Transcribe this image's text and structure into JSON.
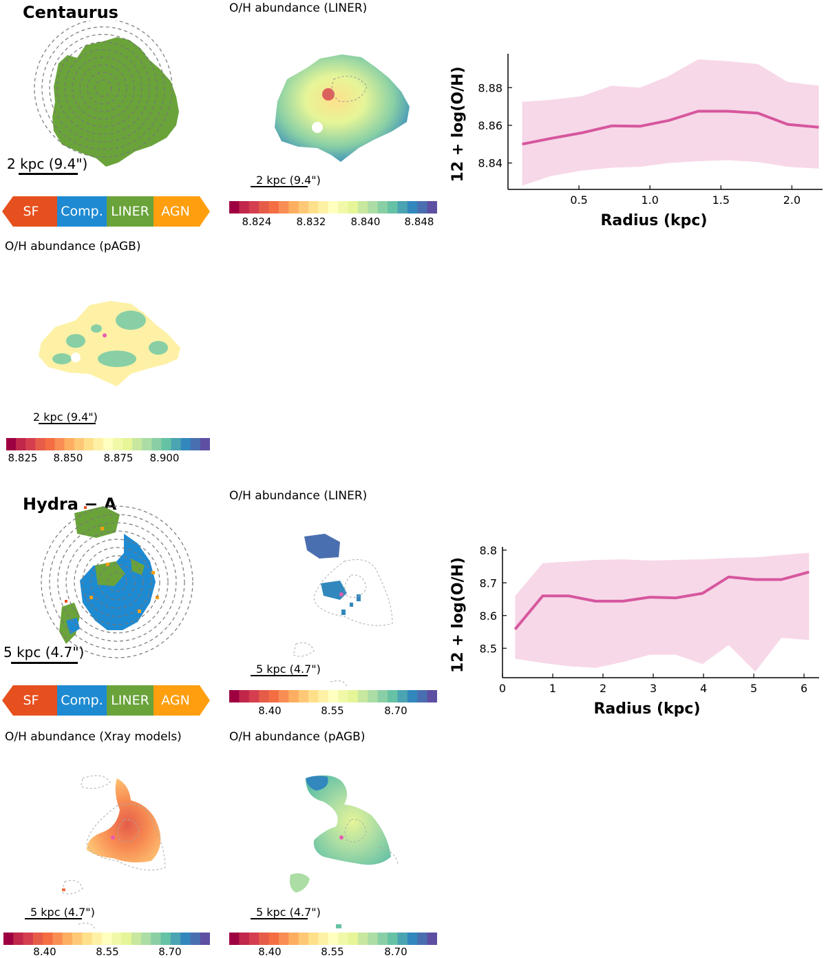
{
  "palette": [
    "#9e0142",
    "#c0274a",
    "#d53e4f",
    "#e55c49",
    "#f46d43",
    "#f88e53",
    "#fdae61",
    "#fec877",
    "#fee08b",
    "#fef1a6",
    "#ffffbf",
    "#f1f9a9",
    "#e6f598",
    "#c7e89e",
    "#abdda4",
    "#89cfa5",
    "#66c2a5",
    "#4aa4b2",
    "#3288bd",
    "#4a6fb0",
    "#5e4fa2"
  ],
  "class_colors": {
    "SF": "#e6501e",
    "Comp": "#1e8ad2",
    "LINER": "#6aa33a",
    "AGN": "#ff9f10"
  },
  "centaurus": {
    "name": "Centaurus",
    "class_map": {
      "scale": "2 kpc (9.4\")"
    },
    "legend": {
      "sf": "SF",
      "comp": "Comp.",
      "liner": "LINER",
      "agn": "AGN"
    },
    "liner_map": {
      "title": "O/H abundance (LINER)",
      "scale": "2 kpc (9.4\")",
      "ticks": [
        "8.824",
        "8.832",
        "8.840",
        "8.848"
      ]
    },
    "pagb_map": {
      "title": "O/H abundance (pAGB)",
      "scale": "2 kpc (9.4\")",
      "ticks": [
        "8.825",
        "8.850",
        "8.875",
        "8.900"
      ]
    }
  },
  "hydra": {
    "name": "Hydra − A",
    "class_map": {
      "scale": "5 kpc (4.7\")"
    },
    "legend": {
      "sf": "SF",
      "comp": "Comp.",
      "liner": "LINER",
      "agn": "AGN"
    },
    "liner_map": {
      "title": "O/H abundance (LINER)",
      "scale": "5 kpc (4.7\")",
      "ticks": [
        "8.40",
        "8.55",
        "8.70"
      ]
    },
    "xray_map": {
      "title": "O/H abundance (Xray models)",
      "scale": "5 kpc (4.7\")",
      "ticks": [
        "8.40",
        "8.55",
        "8.70"
      ]
    },
    "pagb_map": {
      "title": "O/H abundance (pAGB)",
      "scale": "5 kpc (4.7\")",
      "ticks": [
        "8.40",
        "8.55",
        "8.70"
      ]
    }
  },
  "chart_data": [
    {
      "type": "line",
      "xlabel": "Radius (kpc)",
      "ylabel": "12 + log(O/H)",
      "xlim": [
        0.0,
        2.25
      ],
      "ylim": [
        8.826,
        8.898
      ],
      "xticks": [
        0.5,
        1.0,
        1.5,
        2.0
      ],
      "yticks": [
        8.84,
        8.86,
        8.88
      ],
      "line_color": "#d6579e",
      "band_color": "#f7d8e8",
      "x": [
        0.1,
        0.3,
        0.52,
        0.73,
        0.93,
        1.13,
        1.34,
        1.55,
        1.76,
        1.97,
        2.19
      ],
      "y": [
        8.85,
        8.853,
        8.856,
        8.8597,
        8.8595,
        8.8625,
        8.8675,
        8.8675,
        8.8665,
        8.8605,
        8.859
      ],
      "upper": [
        8.8725,
        8.8735,
        8.8755,
        8.881,
        8.88,
        8.886,
        8.895,
        8.894,
        8.8925,
        8.883,
        8.881
      ],
      "lower": [
        8.828,
        8.833,
        8.836,
        8.8375,
        8.838,
        8.84,
        8.841,
        8.8415,
        8.8405,
        8.838,
        8.837
      ]
    },
    {
      "type": "line",
      "xlabel": "Radius (kpc)",
      "ylabel": "12 + log(O/H)",
      "xlim": [
        0.0,
        6.3
      ],
      "ylim": [
        8.41,
        8.81
      ],
      "xticks": [
        0,
        1,
        2,
        3,
        4,
        5,
        6
      ],
      "yticks": [
        8.5,
        8.6,
        8.7,
        8.8
      ],
      "line_color": "#d6579e",
      "band_color": "#f7d8e8",
      "x": [
        0.25,
        0.8,
        1.32,
        1.85,
        2.4,
        2.93,
        3.45,
        3.98,
        4.5,
        5.03,
        5.55,
        6.1
      ],
      "y": [
        8.558,
        8.66,
        8.66,
        8.644,
        8.644,
        8.656,
        8.654,
        8.668,
        8.718,
        8.71,
        8.71,
        8.733
      ],
      "upper": [
        8.66,
        8.76,
        8.765,
        8.77,
        8.772,
        8.768,
        8.77,
        8.772,
        8.776,
        8.778,
        8.785,
        8.792
      ],
      "lower": [
        8.468,
        8.455,
        8.445,
        8.44,
        8.458,
        8.48,
        8.48,
        8.452,
        8.51,
        8.428,
        8.532,
        8.525
      ]
    }
  ]
}
